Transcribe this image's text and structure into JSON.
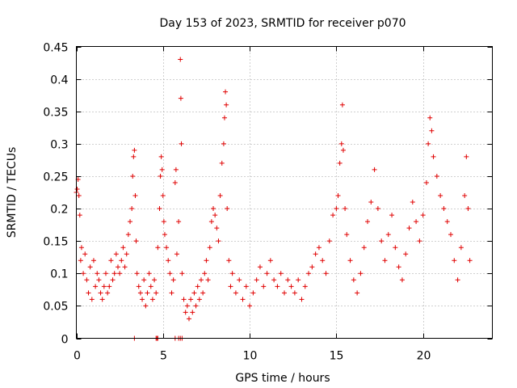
{
  "chart_data": {
    "type": "scatter",
    "title": "Day 153 of 2023, SRMTID for receiver p070",
    "xlabel": "GPS time / hours",
    "ylabel": "SRMTID / TECUs",
    "xlim": [
      0,
      24
    ],
    "ylim": [
      0,
      0.45
    ],
    "xticks": [
      0,
      5,
      10,
      15,
      20
    ],
    "xtick_labels": [
      "0",
      "5",
      "10",
      "15",
      "20"
    ],
    "yticks": [
      0,
      0.05,
      0.1,
      0.15,
      0.2,
      0.25,
      0.3,
      0.35,
      0.4,
      0.45
    ],
    "ytick_labels": [
      "0",
      "0.05",
      "0.1",
      "0.15",
      "0.2",
      "0.25",
      "0.3",
      "0.35",
      "0.4",
      "0.45"
    ],
    "grid": true,
    "marker": "+",
    "series": [
      {
        "name": "SRMTID",
        "color": "#e00000",
        "points": [
          [
            0.0,
            0.225
          ],
          [
            0.05,
            0.23
          ],
          [
            0.1,
            0.245
          ],
          [
            0.15,
            0.22
          ],
          [
            0.2,
            0.19
          ],
          [
            0.25,
            0.12
          ],
          [
            0.3,
            0.14
          ],
          [
            0.4,
            0.1
          ],
          [
            0.5,
            0.13
          ],
          [
            0.6,
            0.09
          ],
          [
            0.7,
            0.07
          ],
          [
            0.8,
            0.11
          ],
          [
            0.9,
            0.06
          ],
          [
            1.0,
            0.12
          ],
          [
            1.1,
            0.08
          ],
          [
            1.2,
            0.1
          ],
          [
            1.3,
            0.09
          ],
          [
            1.4,
            0.07
          ],
          [
            1.5,
            0.06
          ],
          [
            1.6,
            0.08
          ],
          [
            1.7,
            0.1
          ],
          [
            1.8,
            0.07
          ],
          [
            1.9,
            0.08
          ],
          [
            2.0,
            0.12
          ],
          [
            2.1,
            0.09
          ],
          [
            2.2,
            0.1
          ],
          [
            2.3,
            0.13
          ],
          [
            2.4,
            0.11
          ],
          [
            2.5,
            0.1
          ],
          [
            2.6,
            0.12
          ],
          [
            2.7,
            0.14
          ],
          [
            2.8,
            0.11
          ],
          [
            2.9,
            0.13
          ],
          [
            3.0,
            0.16
          ],
          [
            3.1,
            0.18
          ],
          [
            3.2,
            0.2
          ],
          [
            3.25,
            0.25
          ],
          [
            3.3,
            0.28
          ],
          [
            3.35,
            0.29
          ],
          [
            3.4,
            0.22
          ],
          [
            3.45,
            0.15
          ],
          [
            3.5,
            0.1
          ],
          [
            3.6,
            0.08
          ],
          [
            3.7,
            0.07
          ],
          [
            3.8,
            0.06
          ],
          [
            3.9,
            0.09
          ],
          [
            4.0,
            0.05
          ],
          [
            4.1,
            0.07
          ],
          [
            4.2,
            0.1
          ],
          [
            4.3,
            0.08
          ],
          [
            4.4,
            0.06
          ],
          [
            4.5,
            0.09
          ],
          [
            4.6,
            0.07
          ],
          [
            4.7,
            0.14
          ],
          [
            4.8,
            0.2
          ],
          [
            4.85,
            0.25
          ],
          [
            4.9,
            0.28
          ],
          [
            4.95,
            0.26
          ],
          [
            5.0,
            0.22
          ],
          [
            5.05,
            0.18
          ],
          [
            5.1,
            0.16
          ],
          [
            5.2,
            0.14
          ],
          [
            5.3,
            0.12
          ],
          [
            5.4,
            0.1
          ],
          [
            5.5,
            0.07
          ],
          [
            5.6,
            0.09
          ],
          [
            5.7,
            0.24
          ],
          [
            5.75,
            0.26
          ],
          [
            5.8,
            0.13
          ],
          [
            5.9,
            0.18
          ],
          [
            6.0,
            0.43
          ],
          [
            6.03,
            0.37
          ],
          [
            6.06,
            0.3
          ],
          [
            6.1,
            0.1
          ],
          [
            6.2,
            0.06
          ],
          [
            6.3,
            0.04
          ],
          [
            6.4,
            0.05
          ],
          [
            6.5,
            0.03
          ],
          [
            6.6,
            0.06
          ],
          [
            6.7,
            0.04
          ],
          [
            6.8,
            0.07
          ],
          [
            6.9,
            0.05
          ],
          [
            7.0,
            0.08
          ],
          [
            7.1,
            0.06
          ],
          [
            7.2,
            0.09
          ],
          [
            7.3,
            0.07
          ],
          [
            7.4,
            0.1
          ],
          [
            7.5,
            0.12
          ],
          [
            7.6,
            0.09
          ],
          [
            7.7,
            0.14
          ],
          [
            7.8,
            0.18
          ],
          [
            7.9,
            0.2
          ],
          [
            8.0,
            0.19
          ],
          [
            8.1,
            0.17
          ],
          [
            8.2,
            0.15
          ],
          [
            8.3,
            0.22
          ],
          [
            8.4,
            0.27
          ],
          [
            8.5,
            0.3
          ],
          [
            8.55,
            0.34
          ],
          [
            8.6,
            0.38
          ],
          [
            8.65,
            0.36
          ],
          [
            8.7,
            0.2
          ],
          [
            8.8,
            0.12
          ],
          [
            8.9,
            0.08
          ],
          [
            9.0,
            0.1
          ],
          [
            9.2,
            0.07
          ],
          [
            9.4,
            0.09
          ],
          [
            9.6,
            0.06
          ],
          [
            9.8,
            0.08
          ],
          [
            10.0,
            0.05
          ],
          [
            10.2,
            0.07
          ],
          [
            10.4,
            0.09
          ],
          [
            10.6,
            0.11
          ],
          [
            10.8,
            0.08
          ],
          [
            11.0,
            0.1
          ],
          [
            11.2,
            0.12
          ],
          [
            11.4,
            0.09
          ],
          [
            11.6,
            0.08
          ],
          [
            11.8,
            0.1
          ],
          [
            12.0,
            0.07
          ],
          [
            12.2,
            0.09
          ],
          [
            12.4,
            0.08
          ],
          [
            12.6,
            0.07
          ],
          [
            12.8,
            0.09
          ],
          [
            13.0,
            0.06
          ],
          [
            13.2,
            0.08
          ],
          [
            13.4,
            0.1
          ],
          [
            13.6,
            0.11
          ],
          [
            13.8,
            0.13
          ],
          [
            14.0,
            0.14
          ],
          [
            14.2,
            0.12
          ],
          [
            14.4,
            0.1
          ],
          [
            14.6,
            0.15
          ],
          [
            14.8,
            0.19
          ],
          [
            15.0,
            0.2
          ],
          [
            15.1,
            0.22
          ],
          [
            15.2,
            0.27
          ],
          [
            15.3,
            0.3
          ],
          [
            15.35,
            0.36
          ],
          [
            15.4,
            0.29
          ],
          [
            15.5,
            0.2
          ],
          [
            15.6,
            0.16
          ],
          [
            15.8,
            0.12
          ],
          [
            16.0,
            0.09
          ],
          [
            16.2,
            0.07
          ],
          [
            16.4,
            0.1
          ],
          [
            16.6,
            0.14
          ],
          [
            16.8,
            0.18
          ],
          [
            17.0,
            0.21
          ],
          [
            17.2,
            0.26
          ],
          [
            17.4,
            0.2
          ],
          [
            17.6,
            0.15
          ],
          [
            17.8,
            0.12
          ],
          [
            18.0,
            0.16
          ],
          [
            18.2,
            0.19
          ],
          [
            18.4,
            0.14
          ],
          [
            18.6,
            0.11
          ],
          [
            18.8,
            0.09
          ],
          [
            19.0,
            0.13
          ],
          [
            19.2,
            0.17
          ],
          [
            19.4,
            0.21
          ],
          [
            19.6,
            0.18
          ],
          [
            19.8,
            0.15
          ],
          [
            20.0,
            0.19
          ],
          [
            20.2,
            0.24
          ],
          [
            20.3,
            0.3
          ],
          [
            20.4,
            0.34
          ],
          [
            20.5,
            0.32
          ],
          [
            20.6,
            0.28
          ],
          [
            20.8,
            0.25
          ],
          [
            21.0,
            0.22
          ],
          [
            21.2,
            0.2
          ],
          [
            21.4,
            0.18
          ],
          [
            21.6,
            0.16
          ],
          [
            21.8,
            0.12
          ],
          [
            22.0,
            0.09
          ],
          [
            22.2,
            0.14
          ],
          [
            22.4,
            0.22
          ],
          [
            22.5,
            0.28
          ],
          [
            22.6,
            0.2
          ],
          [
            22.7,
            0.12
          ]
        ],
        "zero_points": [
          3.35,
          4.6,
          4.65,
          4.7,
          5.7,
          5.9,
          6.0,
          6.1
        ]
      }
    ]
  }
}
